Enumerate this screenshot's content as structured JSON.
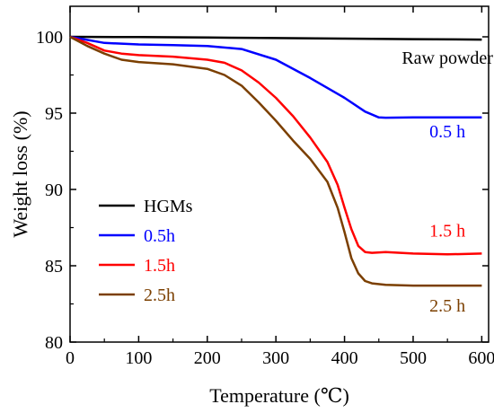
{
  "chart_data": {
    "type": "line",
    "xlabel": "Temperature (℃)",
    "ylabel": "Weight loss (%)",
    "xlim": [
      0,
      610
    ],
    "ylim": [
      80,
      102
    ],
    "xticks": [
      "0",
      "100",
      "200",
      "300",
      "400",
      "500",
      "600"
    ],
    "yticks": [
      "80",
      "85",
      "90",
      "95",
      "100"
    ],
    "xtick_values": [
      0,
      100,
      200,
      300,
      400,
      500,
      600
    ],
    "ytick_values": [
      80,
      85,
      90,
      95,
      100
    ],
    "grid": false,
    "legend_position": "lower-left",
    "series": [
      {
        "name": "HGMs",
        "color": "#000000",
        "x": [
          0,
          100,
          200,
          300,
          400,
          500,
          600
        ],
        "y": [
          100.0,
          99.98,
          99.95,
          99.92,
          99.88,
          99.85,
          99.82
        ]
      },
      {
        "name": "0.5h",
        "color": "#0000ff",
        "x": [
          0,
          50,
          100,
          150,
          200,
          250,
          300,
          350,
          400,
          430,
          450,
          460,
          500,
          550,
          600
        ],
        "y": [
          100.0,
          99.6,
          99.5,
          99.45,
          99.4,
          99.2,
          98.5,
          97.3,
          96.0,
          95.1,
          94.72,
          94.7,
          94.72,
          94.72,
          94.72
        ]
      },
      {
        "name": "1.5h",
        "color": "#ff0000",
        "x": [
          0,
          25,
          50,
          75,
          100,
          150,
          200,
          225,
          250,
          275,
          300,
          325,
          350,
          375,
          390,
          400,
          410,
          420,
          430,
          440,
          460,
          500,
          550,
          600
        ],
        "y": [
          100.0,
          99.6,
          99.1,
          98.9,
          98.8,
          98.7,
          98.5,
          98.3,
          97.8,
          97.0,
          96.0,
          94.8,
          93.4,
          91.8,
          90.3,
          88.8,
          87.4,
          86.3,
          85.9,
          85.85,
          85.9,
          85.8,
          85.75,
          85.8
        ]
      },
      {
        "name": "2.5h",
        "color": "#7b3f00",
        "x": [
          0,
          25,
          50,
          75,
          100,
          150,
          200,
          225,
          250,
          275,
          300,
          325,
          350,
          375,
          390,
          400,
          410,
          420,
          430,
          440,
          460,
          500,
          550,
          600
        ],
        "y": [
          100.0,
          99.4,
          98.9,
          98.5,
          98.35,
          98.2,
          97.9,
          97.5,
          96.8,
          95.7,
          94.5,
          93.2,
          92.0,
          90.5,
          88.8,
          87.2,
          85.5,
          84.5,
          84.0,
          83.85,
          83.75,
          83.7,
          83.7,
          83.7
        ]
      }
    ],
    "annotations": [
      {
        "text": "Raw powder",
        "x": 550,
        "y": 98.25,
        "color": "#000000"
      },
      {
        "text": "0.5 h",
        "x": 550,
        "y": 93.4,
        "color": "#0000ff"
      },
      {
        "text": "1.5 h",
        "x": 550,
        "y": 86.9,
        "color": "#ff0000"
      },
      {
        "text": "2.5 h",
        "x": 550,
        "y": 82.0,
        "color": "#7b3f00"
      }
    ]
  }
}
